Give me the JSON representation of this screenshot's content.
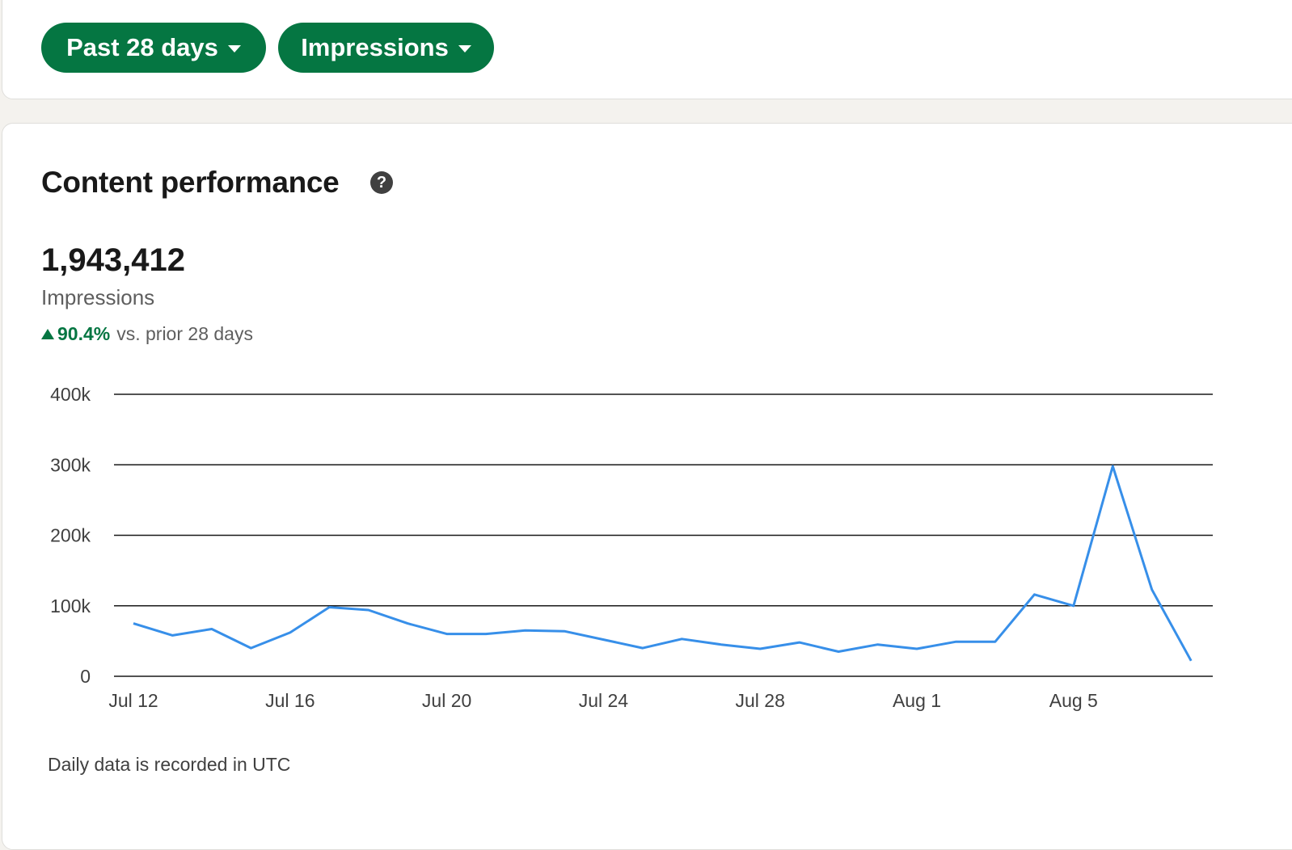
{
  "filters": {
    "range_label": "Past 28 days",
    "metric_label": "Impressions"
  },
  "section": {
    "title": "Content performance",
    "help_icon": "question-circle-icon"
  },
  "summary": {
    "total": "1,943,412",
    "metric": "Impressions",
    "change_value": "90.4%",
    "change_text": "vs. prior 28 days",
    "change_direction": "up"
  },
  "footnote": "Daily data is recorded in UTC",
  "colors": {
    "accent": "#057642",
    "line": "#378fe9",
    "grid": "#191919"
  },
  "chart_data": {
    "type": "line",
    "x": [
      "Jul 12",
      "Jul 13",
      "Jul 14",
      "Jul 15",
      "Jul 16",
      "Jul 17",
      "Jul 18",
      "Jul 19",
      "Jul 20",
      "Jul 21",
      "Jul 22",
      "Jul 23",
      "Jul 24",
      "Jul 25",
      "Jul 26",
      "Jul 27",
      "Jul 28",
      "Jul 29",
      "Jul 30",
      "Jul 31",
      "Aug 1",
      "Aug 2",
      "Aug 3",
      "Aug 4",
      "Aug 5",
      "Aug 6",
      "Aug 7",
      "Aug 8"
    ],
    "series": [
      {
        "values": [
          75000,
          58000,
          67000,
          40000,
          62000,
          98000,
          94000,
          75000,
          60000,
          60000,
          65000,
          64000,
          52000,
          40000,
          53000,
          45000,
          39000,
          48000,
          35000,
          45000,
          39000,
          49000,
          49000,
          116000,
          100000,
          298000,
          123000,
          22000
        ]
      }
    ],
    "y_ticks": [
      "0",
      "100k",
      "200k",
      "300k",
      "400k"
    ],
    "x_ticks": [
      "Jul 12",
      "Jul 16",
      "Jul 20",
      "Jul 24",
      "Jul 28",
      "Aug 1",
      "Aug 5"
    ],
    "ylim": [
      0,
      400000
    ],
    "grid": true,
    "legend": "none"
  }
}
